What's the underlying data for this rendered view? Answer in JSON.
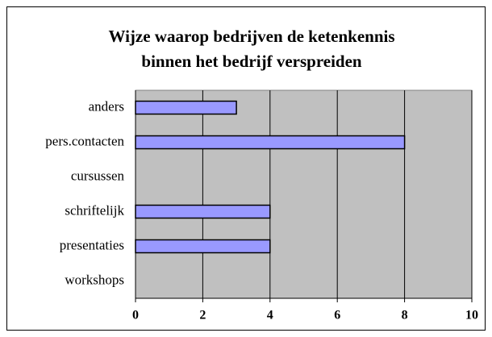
{
  "chart_data": {
    "type": "bar",
    "orientation": "horizontal",
    "title": [
      "Wijze waarop bedrijven de ketenkennis",
      "binnen het bedrijf verspreiden"
    ],
    "categories": [
      "anders",
      "pers.contacten",
      "cursussen",
      "schriftelijk",
      "presentaties",
      "workshops"
    ],
    "values": [
      3,
      8,
      0,
      4,
      4,
      0
    ],
    "color": "#9999ff",
    "plot_background": "#c0c0c0",
    "xlim": [
      0,
      10
    ],
    "xticks": [
      0,
      2,
      4,
      6,
      8,
      10
    ],
    "grid": true
  }
}
